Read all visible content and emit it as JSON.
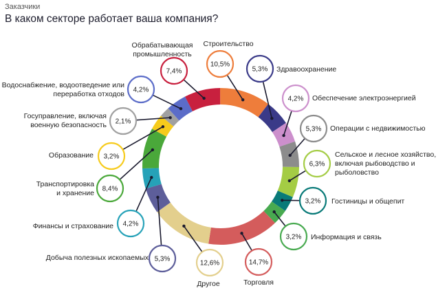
{
  "header": {
    "eyebrow": "Заказчики",
    "title": "В каком секторе работает ваша компания?"
  },
  "chart_data": {
    "type": "pie",
    "subtype": "donut",
    "title": "В каком секторе работает ваша компания?",
    "unit": "%",
    "slices": [
      {
        "name": "Строительство",
        "value": 10.5,
        "value_label": "10,5%",
        "color": "#ee7d3b"
      },
      {
        "name": "Здравоохранение",
        "value": 5.3,
        "value_label": "5,3%",
        "color": "#3a3a88"
      },
      {
        "name": "Обеспечение электроэнергией",
        "value": 4.2,
        "value_label": "4,2%",
        "color": "#cc8fcc"
      },
      {
        "name": "Операции с недвижимостью",
        "value": 5.3,
        "value_label": "5,3%",
        "color": "#8c8c8c"
      },
      {
        "name": "Сельское и лесное хозяйство, включая рыбоводство и рыболовство",
        "value": 6.3,
        "value_label": "6,3%",
        "color": "#a4cc44"
      },
      {
        "name": "Гостиницы и общепит",
        "value": 3.2,
        "value_label": "3,2%",
        "color": "#097a78"
      },
      {
        "name": "Информация и связь",
        "value": 3.2,
        "value_label": "3,2%",
        "color": "#48aa50"
      },
      {
        "name": "Торговля",
        "value": 14.7,
        "value_label": "14,7%",
        "color": "#d45c5c"
      },
      {
        "name": "Другое",
        "value": 12.6,
        "value_label": "12,6%",
        "color": "#e3cf8d"
      },
      {
        "name": "Добыча полезных ископаемых",
        "value": 5.3,
        "value_label": "5,3%",
        "color": "#5d5e9a"
      },
      {
        "name": "Финансы и страхование",
        "value": 4.2,
        "value_label": "4,2%",
        "color": "#26a2b8"
      },
      {
        "name": "Транспортировка и хранение",
        "value": 8.4,
        "value_label": "8,4%",
        "color": "#4aa83a"
      },
      {
        "name": "Образование",
        "value": 3.2,
        "value_label": "3,2%",
        "color": "#f6cb1c"
      },
      {
        "name": "Госуправление, включая военную безопасность",
        "value": 2.1,
        "value_label": "2,1%",
        "color": "#a0a0a0"
      },
      {
        "name": "Водоснабжение, водоотведение или переработка отходов",
        "value": 4.2,
        "value_label": "4,2%",
        "color": "#5b6cc8"
      },
      {
        "name": "Обрабатывающая промышленность",
        "value": 7.4,
        "value_label": "7,4%",
        "color": "#c8203e"
      }
    ]
  }
}
